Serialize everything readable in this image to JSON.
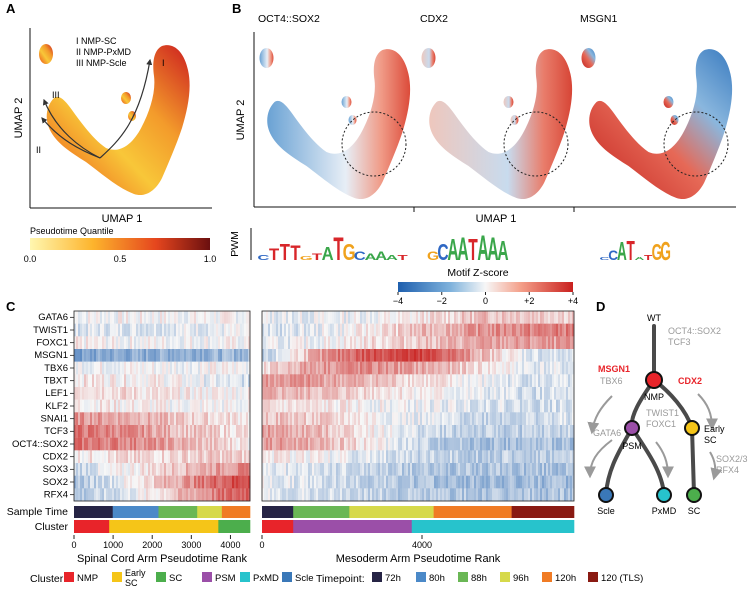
{
  "colors": {
    "NMP": "#e8242a",
    "Early SC": "#f5c518",
    "SC": "#4cae4c",
    "PSM": "#9b4fa8",
    "PxMD": "#27c3cc",
    "Scle": "#3a78b8",
    "72h": "#262445",
    "80h": "#4b89c8",
    "88h": "#6ab755",
    "96h": "#d6d94a",
    "120h": "#f07b24",
    "120 (TLS)": "#8a1a12",
    "gray": "#9a9a9a",
    "red": "#e8242a"
  },
  "panels": {
    "a": {
      "letter": "A",
      "xlabel": "UMAP 1",
      "ylabel": "UMAP 2",
      "traj_labels": [
        "I",
        "II",
        "III"
      ],
      "legend": [
        "I   NMP-SC",
        "II  NMP-PxMD",
        "III  NMP-Scle"
      ],
      "colorbar_title": "Pseudotime Quantile",
      "colorbar_ticks": [
        "0.0",
        "0.5",
        "1.0"
      ]
    },
    "b": {
      "letter": "B",
      "titles": [
        "OCT4::SOX2",
        "CDX2",
        "MSGN1"
      ],
      "xlabel": "UMAP 1",
      "ylabel": "UMAP 2",
      "pwm_label": "PWM",
      "motifs": [
        "CTTTGTATGCAAAT",
        "GCAATAAA",
        "CCATATGG"
      ]
    },
    "c": {
      "letter": "C",
      "colorbar_title": "Motif Z-score",
      "xlabel_left": "Spinal Cord Arm Pseudotime Rank",
      "xlabel_right": "Mesoderm Arm Pseudotime Rank",
      "row_labels_bottom": [
        "Sample Time",
        "Cluster"
      ]
    },
    "d": {
      "letter": "D",
      "wt": "WT",
      "wt_tfs": "OCT4::SOX2\nTCF3",
      "msgn1": "MSGN1",
      "tbx6": "TBX6",
      "cdx2": "CDX2",
      "nmp": "NMP",
      "early_sc": "Early\nSC",
      "psm": "PSM",
      "twist": "TWIST1\nFOXC1",
      "gata6": "GATA6",
      "sox": "SOX2/3\nRFX4",
      "leaves": [
        "Scle",
        "PxMD",
        "SC"
      ]
    }
  },
  "legend": {
    "cluster_title": "Cluster:",
    "clusters": [
      "NMP",
      "Early SC",
      "SC",
      "PSM",
      "PxMD",
      "Scle"
    ],
    "timepoint_title": "Timepoint:",
    "timepoints": [
      "72h",
      "80h",
      "88h",
      "96h",
      "120h",
      "120 (TLS)"
    ]
  },
  "chart_data": [
    {
      "type": "scatter",
      "title": "",
      "xlabel": "UMAP 1",
      "ylabel": "UMAP 2",
      "color_variable": "Pseudotime Quantile",
      "color_range": [
        0,
        1
      ],
      "trajectories": [
        "I NMP-SC",
        "II NMP-PxMD",
        "III NMP-Scle"
      ]
    },
    {
      "type": "scatter",
      "title": "OCT4::SOX2 / CDX2 / MSGN1",
      "xlabel": "UMAP 1",
      "ylabel": "UMAP 2",
      "color_variable": "Motif Z-score",
      "color_range": [
        -4,
        4
      ]
    },
    {
      "type": "heatmap",
      "title": "Motif Z-score",
      "rows": [
        "GATA6",
        "TWIST1",
        "FOXC1",
        "MSGN1",
        "TBX6",
        "TBXT",
        "LEF1",
        "KLF2",
        "SNAI1",
        "TCF3",
        "OCT4::SOX2",
        "CDX2",
        "SOX3",
        "SOX2",
        "RFX4"
      ],
      "color_range": [
        -4,
        4
      ],
      "colorbar_ticks": [
        "−4",
        "−2",
        "0",
        "+2",
        "+4"
      ],
      "left_arm": {
        "xlabel": "Spinal Cord Arm Pseudotime Rank",
        "xlim": [
          0,
          4500
        ],
        "xticks": [
          0,
          1000,
          2000,
          3000,
          4000
        ],
        "z": [
          [
            0.0,
            0.0,
            0.0,
            0.0,
            0.0,
            0.0
          ],
          [
            -0.4,
            -0.3,
            -0.3,
            -0.2,
            -0.2,
            -0.2
          ],
          [
            0.1,
            0.0,
            0.0,
            0.0,
            0.0,
            0.0
          ],
          [
            -1.8,
            -1.5,
            -1.5,
            -1.3,
            -1.3,
            -1.2
          ],
          [
            0.0,
            0.0,
            0.0,
            0.0,
            0.0,
            0.0
          ],
          [
            0.3,
            0.2,
            0.2,
            0.0,
            -0.3,
            -0.5
          ],
          [
            0.6,
            0.5,
            0.3,
            0.1,
            0.1,
            0.1
          ],
          [
            0.2,
            0.2,
            0.1,
            0.0,
            0.0,
            -0.1
          ],
          [
            1.4,
            1.2,
            1.0,
            0.6,
            0.4,
            0.3
          ],
          [
            1.8,
            1.6,
            1.3,
            0.8,
            0.5,
            0.3
          ],
          [
            1.8,
            1.7,
            1.5,
            1.0,
            0.6,
            0.2
          ],
          [
            0.2,
            0.3,
            0.4,
            0.5,
            0.6,
            0.5
          ],
          [
            -0.6,
            -0.2,
            0.3,
            0.8,
            1.2,
            1.5
          ],
          [
            -1.0,
            -0.4,
            0.4,
            1.2,
            2.0,
            2.6
          ],
          [
            -1.0,
            -0.6,
            0.0,
            0.8,
            1.6,
            2.3
          ]
        ]
      },
      "right_arm": {
        "xlabel": "Mesoderm Arm Pseudotime Rank",
        "xlim": [
          0,
          7800
        ],
        "xticks": [
          0,
          4000
        ],
        "z": [
          [
            -0.2,
            -0.2,
            -0.1,
            0.0,
            0.4,
            0.8,
            0.8,
            0.6
          ],
          [
            -0.5,
            -0.3,
            0.0,
            0.5,
            1.0,
            1.4,
            1.6,
            1.7
          ],
          [
            -0.3,
            -0.1,
            0.2,
            0.5,
            0.8,
            1.1,
            1.2,
            1.2
          ],
          [
            -1.0,
            0.8,
            2.0,
            2.6,
            2.2,
            0.8,
            -0.3,
            -0.6
          ],
          [
            0.2,
            1.2,
            1.5,
            1.3,
            0.9,
            0.3,
            -0.2,
            -0.4
          ],
          [
            1.3,
            1.3,
            1.0,
            0.6,
            0.2,
            -0.2,
            -0.4,
            -0.5
          ],
          [
            0.9,
            0.8,
            0.6,
            0.3,
            0.0,
            -0.3,
            -0.5,
            -0.5
          ],
          [
            0.3,
            0.2,
            0.1,
            -0.1,
            -0.2,
            -0.3,
            -0.5,
            -0.5
          ],
          [
            0.8,
            0.6,
            0.3,
            -0.1,
            -0.4,
            -0.6,
            -0.6,
            -0.4
          ],
          [
            1.2,
            0.9,
            0.5,
            -0.2,
            -0.6,
            -0.8,
            -0.8,
            -0.7
          ],
          [
            1.3,
            1.0,
            0.5,
            -0.3,
            -0.9,
            -1.1,
            -1.1,
            -1.0
          ],
          [
            0.2,
            0.1,
            -0.2,
            -0.5,
            -0.7,
            -0.8,
            -0.8,
            -0.8
          ],
          [
            -0.2,
            -0.4,
            -0.6,
            -0.8,
            -1.0,
            -1.0,
            -1.0,
            -1.1
          ],
          [
            -0.2,
            -0.4,
            -0.6,
            -0.9,
            -1.1,
            -1.2,
            -1.2,
            -1.2
          ],
          [
            -0.3,
            -0.4,
            -0.6,
            -0.8,
            -0.9,
            -1.0,
            -1.0,
            -1.0
          ]
        ]
      },
      "annotation_rows": {
        "sample_time_left": [
          "72h",
          "80h",
          "88h",
          "96h",
          "120h"
        ],
        "cluster_left": [
          "NMP",
          "Early SC",
          "SC"
        ],
        "sample_time_right": [
          "72h",
          "88h",
          "96h",
          "120h",
          "120 (TLS)"
        ],
        "cluster_right": [
          "NMP",
          "PSM",
          "PxMD"
        ]
      }
    }
  ]
}
